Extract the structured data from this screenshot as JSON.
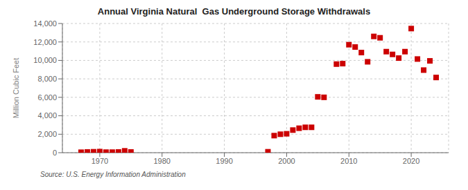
{
  "chart_data": {
    "type": "scatter",
    "title": "Annual Virginia Natural  Gas Underground Storage Withdrawals",
    "ylabel": "Million Cubic Feet",
    "annotations": [
      "Source: U.S. Energy Information Administration"
    ],
    "x": [
      1967,
      1968,
      1969,
      1970,
      1971,
      1972,
      1973,
      1974,
      1975,
      1997,
      1998,
      1999,
      2000,
      2001,
      2002,
      2003,
      2004,
      2005,
      2006,
      2008,
      2009,
      2010,
      2011,
      2012,
      2013,
      2014,
      2015,
      2016,
      2017,
      2018,
      2019,
      2020,
      2021,
      2022,
      2023,
      2024
    ],
    "values": [
      50,
      80,
      100,
      120,
      60,
      60,
      80,
      200,
      80,
      100,
      1850,
      2000,
      2050,
      2450,
      2650,
      2750,
      2750,
      6050,
      6000,
      9600,
      9650,
      11700,
      11450,
      10850,
      9850,
      12600,
      12450,
      10950,
      10650,
      10250,
      10950,
      13450,
      10150,
      8950,
      9950,
      8150
    ],
    "color": "#cc0000",
    "marker": "square",
    "xlim": [
      1964,
      2026
    ],
    "xticks": [
      1970,
      1980,
      1990,
      2000,
      2010,
      2020
    ],
    "ylim": [
      0,
      14000
    ],
    "yticks": [
      0,
      {
        "value": 2000,
        "label": "2,000"
      },
      {
        "value": 4000,
        "label": "4,000"
      },
      {
        "value": 6000,
        "label": "6,000"
      },
      {
        "value": 8000,
        "label": "8,000"
      },
      {
        "value": 10000,
        "label": "10,000"
      },
      {
        "value": 12000,
        "label": "12,000"
      },
      {
        "value": 14000,
        "label": "14,000"
      }
    ],
    "grid": true
  }
}
